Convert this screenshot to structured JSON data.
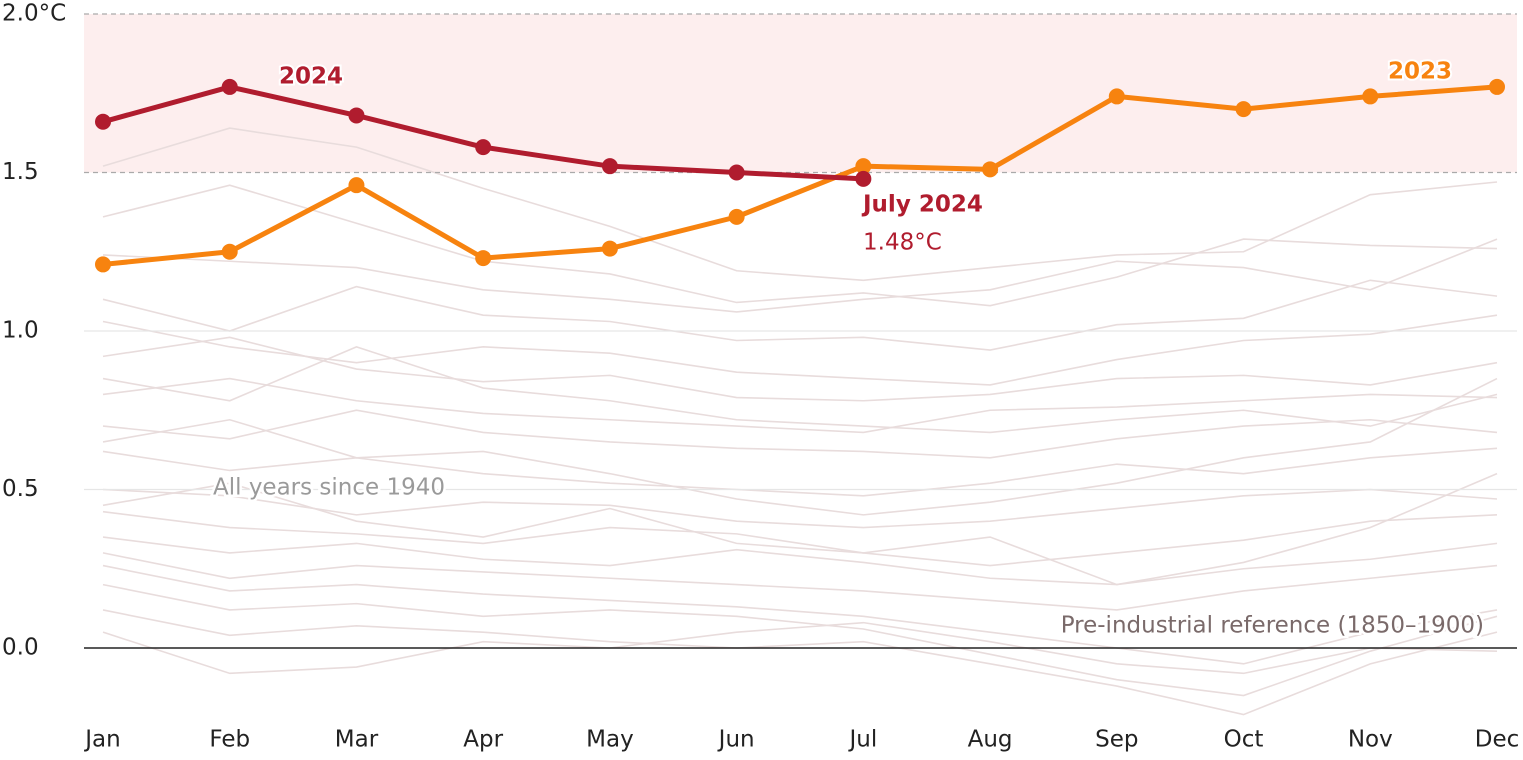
{
  "chart_data": {
    "type": "line",
    "categories": [
      "Jan",
      "Feb",
      "Mar",
      "Apr",
      "May",
      "Jun",
      "Jul",
      "Aug",
      "Sep",
      "Oct",
      "Nov",
      "Dec"
    ],
    "ylim": [
      -0.22,
      2.0
    ],
    "yticks": [
      {
        "value": 0,
        "label": "0.0"
      },
      0.5,
      {
        "value": 1,
        "label": "1.0"
      },
      1.5,
      {
        "value": 2,
        "label": "2.0°C"
      }
    ],
    "grid": true,
    "highlight_band": {
      "range": [
        1.5,
        2.0
      ],
      "color": "#fdeeee"
    },
    "series": [
      {
        "name": "2023",
        "color": "#f7830f",
        "values": [
          1.21,
          1.25,
          1.46,
          1.23,
          1.26,
          1.36,
          1.52,
          1.51,
          1.74,
          1.7,
          1.74,
          1.77
        ]
      },
      {
        "name": "2024",
        "color": "#b01c2e",
        "values": [
          1.66,
          1.77,
          1.68,
          1.58,
          1.52,
          1.5,
          1.48,
          null,
          null,
          null,
          null,
          null
        ]
      }
    ],
    "annotations": [
      "July 2024",
      "1.48°C"
    ],
    "background": {
      "label": "All years since 1940",
      "color": "#e8dcdc",
      "lines": [
        [
          1.52,
          1.64,
          1.58,
          1.45,
          1.33,
          1.19,
          1.16,
          1.2,
          1.24,
          1.25,
          1.43,
          1.47
        ],
        [
          1.36,
          1.46,
          1.34,
          1.22,
          1.18,
          1.09,
          1.12,
          1.08,
          1.17,
          1.29,
          1.27,
          1.26
        ],
        [
          1.24,
          1.22,
          1.2,
          1.13,
          1.1,
          1.06,
          1.1,
          1.13,
          1.22,
          1.2,
          1.13,
          1.29
        ],
        [
          1.1,
          1.0,
          1.14,
          1.05,
          1.03,
          0.97,
          0.98,
          0.94,
          1.02,
          1.04,
          1.16,
          1.11
        ],
        [
          1.03,
          0.95,
          0.9,
          0.95,
          0.93,
          0.87,
          0.85,
          0.83,
          0.91,
          0.97,
          0.99,
          1.05
        ],
        [
          0.92,
          0.98,
          0.88,
          0.84,
          0.86,
          0.79,
          0.78,
          0.8,
          0.85,
          0.86,
          0.83,
          0.9
        ],
        [
          0.8,
          0.85,
          0.78,
          0.74,
          0.72,
          0.7,
          0.68,
          0.75,
          0.76,
          0.78,
          0.8,
          0.79
        ],
        [
          0.7,
          0.66,
          0.75,
          0.68,
          0.65,
          0.63,
          0.62,
          0.6,
          0.66,
          0.7,
          0.72,
          0.68
        ],
        [
          0.62,
          0.56,
          0.6,
          0.55,
          0.52,
          0.5,
          0.48,
          0.52,
          0.58,
          0.55,
          0.6,
          0.63
        ],
        [
          0.5,
          0.48,
          0.42,
          0.46,
          0.45,
          0.4,
          0.38,
          0.4,
          0.44,
          0.48,
          0.5,
          0.47
        ],
        [
          0.43,
          0.38,
          0.36,
          0.33,
          0.38,
          0.36,
          0.3,
          0.26,
          0.3,
          0.34,
          0.4,
          0.42
        ],
        [
          0.35,
          0.3,
          0.33,
          0.28,
          0.26,
          0.31,
          0.27,
          0.22,
          0.2,
          0.25,
          0.28,
          0.33
        ],
        [
          0.3,
          0.22,
          0.26,
          0.24,
          0.22,
          0.2,
          0.18,
          0.15,
          0.12,
          0.18,
          0.22,
          0.26
        ],
        [
          0.26,
          0.18,
          0.2,
          0.17,
          0.15,
          0.13,
          0.1,
          0.05,
          0.0,
          -0.05,
          0.05,
          0.12
        ],
        [
          0.2,
          0.12,
          0.14,
          0.1,
          0.12,
          0.1,
          0.06,
          -0.02,
          -0.1,
          -0.15,
          -0.01,
          0.1
        ],
        [
          0.12,
          0.04,
          0.07,
          0.05,
          0.02,
          0.0,
          0.02,
          -0.05,
          -0.12,
          -0.21,
          -0.05,
          0.05
        ],
        [
          0.05,
          -0.08,
          -0.06,
          0.02,
          0.0,
          0.05,
          0.08,
          0.02,
          -0.05,
          -0.08,
          0.0,
          -0.01
        ],
        [
          0.45,
          0.52,
          0.4,
          0.35,
          0.44,
          0.33,
          0.3,
          0.35,
          0.2,
          0.27,
          0.38,
          0.55
        ],
        [
          0.65,
          0.72,
          0.6,
          0.62,
          0.55,
          0.47,
          0.42,
          0.46,
          0.52,
          0.6,
          0.65,
          0.85
        ],
        [
          0.85,
          0.78,
          0.95,
          0.82,
          0.78,
          0.72,
          0.7,
          0.68,
          0.72,
          0.75,
          0.7,
          0.8
        ]
      ]
    },
    "reference_label": "Pre-industrial reference (1850–1900)"
  }
}
